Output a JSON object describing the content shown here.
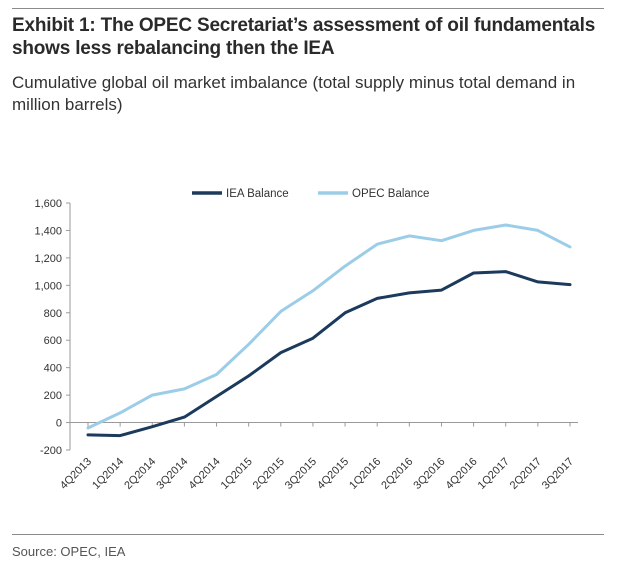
{
  "header": {
    "title": "Exhibit 1: The OPEC Secretariat’s assessment of oil fundamentals shows less rebalancing then the IEA",
    "subtitle": "Cumulative global oil market imbalance (total supply minus total demand in million barrels)"
  },
  "footer": {
    "source": "Source: OPEC, IEA"
  },
  "chart_data": {
    "type": "line",
    "title": "Exhibit 1: The OPEC Secretariat’s assessment of oil fundamentals shows less rebalancing then the IEA",
    "subtitle": "Cumulative global oil market imbalance (total supply minus total demand in million barrels)",
    "xlabel": "",
    "ylabel": "",
    "categories": [
      "4Q2013",
      "1Q2014",
      "2Q2014",
      "3Q2014",
      "4Q2014",
      "1Q2015",
      "2Q2015",
      "3Q2015",
      "4Q2015",
      "1Q2016",
      "2Q2016",
      "3Q2016",
      "4Q2016",
      "1Q2017",
      "2Q2017",
      "3Q2017"
    ],
    "series": [
      {
        "name": "IEA Balance",
        "color": "#1b3a5c",
        "values": [
          -90,
          -95,
          -30,
          40,
          190,
          340,
          510,
          615,
          800,
          905,
          945,
          965,
          1090,
          1100,
          1025,
          1005
        ]
      },
      {
        "name": "OPEC Balance",
        "color": "#9ccde8",
        "values": [
          -40,
          70,
          200,
          245,
          350,
          570,
          810,
          960,
          1140,
          1300,
          1360,
          1325,
          1400,
          1440,
          1400,
          1280
        ]
      }
    ],
    "ylim": [
      -200,
      1600
    ],
    "yticks": [
      -200,
      0,
      200,
      400,
      600,
      800,
      1000,
      1200,
      1400,
      1600
    ],
    "ytick_labels": [
      "-200",
      "0",
      "200",
      "400",
      "600",
      "800",
      "1,000",
      "1,200",
      "1,400",
      "1,600"
    ],
    "grid": false,
    "legend_position": "top-center"
  }
}
